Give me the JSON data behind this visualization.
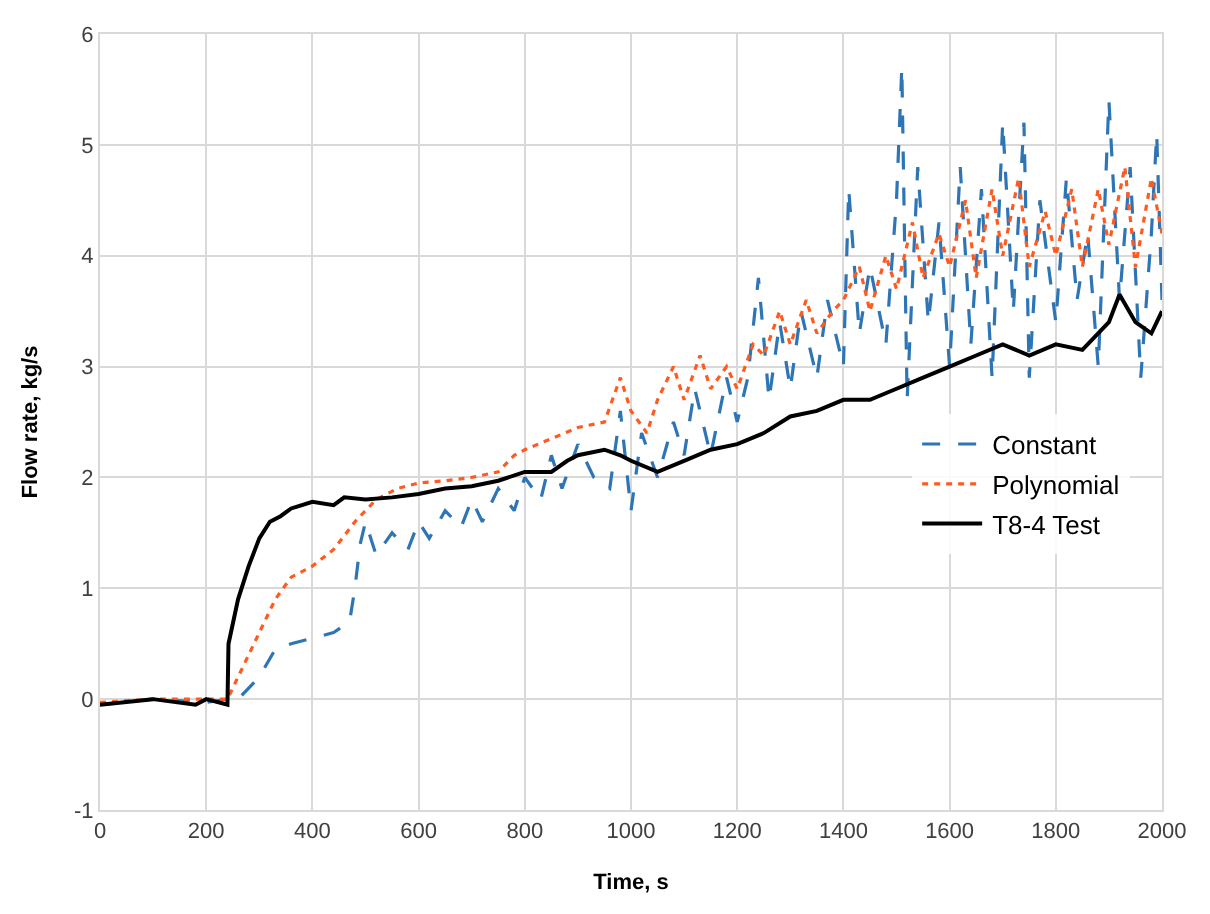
{
  "chart_data": {
    "type": "line",
    "xlabel": "Time, s",
    "ylabel": "Flow rate, kg/s",
    "xlim": [
      0,
      2000
    ],
    "xticks": [
      0,
      200,
      400,
      600,
      800,
      1000,
      1200,
      1400,
      1600,
      1800,
      2000
    ],
    "ylim": [
      -1,
      6
    ],
    "yticks": [
      -1,
      0,
      1,
      2,
      3,
      4,
      5,
      6
    ],
    "grid": true,
    "legend": "right",
    "marker": "none",
    "series": [
      {
        "name": "Constant",
        "color": "#2e75b6",
        "line_style": "dashed",
        "x": [
          0,
          100,
          200,
          240,
          260,
          300,
          330,
          360,
          400,
          440,
          470,
          480,
          490,
          500,
          520,
          550,
          580,
          600,
          620,
          650,
          680,
          700,
          720,
          750,
          780,
          800,
          830,
          850,
          870,
          900,
          930,
          960,
          980,
          1000,
          1020,
          1050,
          1080,
          1100,
          1120,
          1150,
          1180,
          1200,
          1220,
          1240,
          1260,
          1280,
          1300,
          1320,
          1350,
          1370,
          1400,
          1410,
          1430,
          1450,
          1480,
          1500,
          1510,
          1520,
          1540,
          1560,
          1580,
          1600,
          1620,
          1640,
          1660,
          1680,
          1700,
          1720,
          1740,
          1750,
          1770,
          1800,
          1820,
          1840,
          1860,
          1880,
          1900,
          1920,
          1940,
          1960,
          1980,
          1990,
          2000
        ],
        "values": [
          -0.05,
          0,
          -0.03,
          0,
          0,
          0.2,
          0.45,
          0.5,
          0.55,
          0.6,
          0.7,
          1.0,
          1.4,
          1.6,
          1.3,
          1.5,
          1.35,
          1.6,
          1.45,
          1.7,
          1.55,
          1.8,
          1.6,
          1.9,
          1.7,
          2.0,
          1.8,
          2.2,
          1.9,
          2.3,
          2.0,
          1.9,
          2.6,
          1.7,
          2.4,
          2.0,
          2.5,
          2.2,
          2.8,
          2.2,
          2.9,
          2.5,
          2.9,
          3.8,
          2.7,
          3.4,
          2.8,
          3.5,
          2.9,
          3.6,
          3.0,
          4.6,
          3.3,
          3.9,
          3.2,
          4.5,
          5.7,
          2.7,
          4.8,
          3.4,
          4.3,
          3.0,
          4.8,
          3.2,
          4.6,
          2.9,
          5.2,
          3.5,
          5.2,
          2.9,
          4.5,
          3.4,
          4.7,
          3.6,
          4.2,
          3.0,
          5.4,
          3.6,
          4.8,
          2.9,
          4.2,
          5.1,
          3.6
        ]
      },
      {
        "name": "Polynomial",
        "color": "#ff5a1f",
        "line_style": "dotted",
        "x": [
          0,
          100,
          200,
          240,
          270,
          300,
          330,
          360,
          400,
          440,
          480,
          520,
          560,
          600,
          650,
          700,
          750,
          780,
          800,
          850,
          900,
          950,
          980,
          1000,
          1030,
          1050,
          1080,
          1100,
          1130,
          1150,
          1180,
          1200,
          1230,
          1250,
          1280,
          1300,
          1330,
          1350,
          1380,
          1400,
          1430,
          1450,
          1480,
          1500,
          1530,
          1550,
          1580,
          1600,
          1630,
          1650,
          1680,
          1700,
          1730,
          1750,
          1780,
          1800,
          1830,
          1850,
          1880,
          1900,
          1930,
          1950,
          1980,
          2000
        ],
        "values": [
          -0.03,
          0,
          0,
          0,
          0.3,
          0.6,
          0.9,
          1.1,
          1.2,
          1.35,
          1.6,
          1.8,
          1.9,
          1.95,
          1.97,
          2.0,
          2.05,
          2.2,
          2.25,
          2.35,
          2.45,
          2.5,
          2.9,
          2.6,
          2.4,
          2.7,
          3.0,
          2.7,
          3.1,
          2.8,
          3.0,
          2.8,
          3.2,
          3.1,
          3.5,
          3.2,
          3.6,
          3.3,
          3.5,
          3.6,
          3.9,
          3.5,
          4.0,
          3.7,
          4.3,
          3.8,
          4.2,
          3.9,
          4.5,
          3.8,
          4.6,
          4.0,
          4.7,
          3.9,
          4.4,
          4.0,
          4.6,
          3.9,
          4.6,
          4.1,
          4.8,
          3.9,
          4.7,
          4.2
        ]
      },
      {
        "name": "T8-4 Test",
        "color": "#000000",
        "line_style": "solid",
        "x": [
          0,
          100,
          180,
          200,
          240,
          242,
          260,
          280,
          300,
          320,
          340,
          360,
          400,
          440,
          460,
          500,
          550,
          600,
          650,
          700,
          750,
          800,
          850,
          880,
          900,
          950,
          980,
          1000,
          1050,
          1100,
          1150,
          1200,
          1250,
          1300,
          1350,
          1400,
          1450,
          1500,
          1550,
          1600,
          1650,
          1700,
          1750,
          1800,
          1850,
          1900,
          1920,
          1950,
          1980,
          2000
        ],
        "values": [
          -0.05,
          0,
          -0.05,
          0,
          -0.05,
          0.5,
          0.9,
          1.2,
          1.45,
          1.6,
          1.65,
          1.72,
          1.78,
          1.75,
          1.82,
          1.8,
          1.82,
          1.85,
          1.9,
          1.92,
          1.97,
          2.05,
          2.05,
          2.15,
          2.2,
          2.25,
          2.2,
          2.15,
          2.05,
          2.15,
          2.25,
          2.3,
          2.4,
          2.55,
          2.6,
          2.7,
          2.7,
          2.8,
          2.9,
          3.0,
          3.1,
          3.2,
          3.1,
          3.2,
          3.15,
          3.4,
          3.65,
          3.4,
          3.3,
          3.5
        ]
      }
    ]
  }
}
